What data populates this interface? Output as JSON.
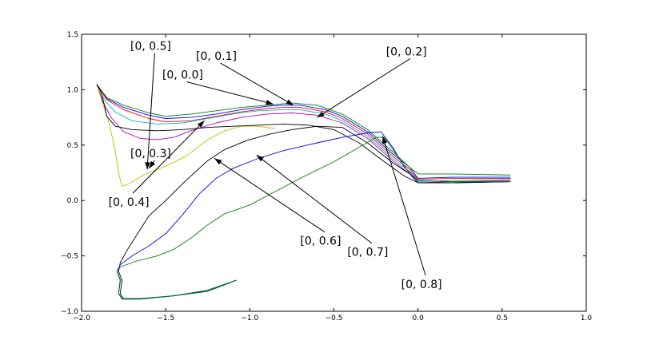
{
  "chart_data": {
    "type": "line",
    "title": "",
    "xlabel": "",
    "ylabel": "",
    "xlim": [
      -2.0,
      1.0
    ],
    "ylim": [
      -1.0,
      1.5
    ],
    "xticks": [
      -2.0,
      -1.5,
      -1.0,
      -0.5,
      0.0,
      0.5,
      1.0
    ],
    "xtick_labels": [
      "−2.0",
      "−1.5",
      "−1.0",
      "−0.5",
      "0.0",
      "0.5",
      "1.0"
    ],
    "yticks": [
      -1.0,
      -0.5,
      0.0,
      0.5,
      1.0,
      1.5
    ],
    "ytick_labels": [
      "−1.0",
      "−0.5",
      "0.0",
      "0.5",
      "1.0",
      "1.5"
    ],
    "grid": false,
    "legend": "none",
    "series": [
      {
        "color": "#0000ff",
        "points": [
          [
            -1.91,
            1.05
          ],
          [
            -1.85,
            0.92
          ],
          [
            -1.75,
            0.84
          ],
          [
            -1.6,
            0.77
          ],
          [
            -1.5,
            0.74
          ],
          [
            -1.35,
            0.75
          ],
          [
            -1.2,
            0.78
          ],
          [
            -1.05,
            0.82
          ],
          [
            -0.9,
            0.85
          ],
          [
            -0.8,
            0.86
          ],
          [
            -0.7,
            0.86
          ],
          [
            -0.55,
            0.82
          ],
          [
            -0.45,
            0.76
          ],
          [
            -0.3,
            0.62
          ],
          [
            -0.15,
            0.42
          ],
          [
            -0.05,
            0.3
          ],
          [
            0.0,
            0.2
          ],
          [
            0.2,
            0.21
          ],
          [
            0.55,
            0.21
          ]
        ]
      },
      {
        "color": "#008000",
        "points": [
          [
            -1.91,
            1.05
          ],
          [
            -1.85,
            0.93
          ],
          [
            -1.75,
            0.86
          ],
          [
            -1.6,
            0.79
          ],
          [
            -1.5,
            0.76
          ],
          [
            -1.35,
            0.78
          ],
          [
            -1.2,
            0.81
          ],
          [
            -1.05,
            0.84
          ],
          [
            -0.9,
            0.86
          ],
          [
            -0.75,
            0.88
          ],
          [
            -0.6,
            0.86
          ],
          [
            -0.45,
            0.78
          ],
          [
            -0.3,
            0.64
          ],
          [
            -0.15,
            0.44
          ],
          [
            -0.05,
            0.3
          ],
          [
            0.0,
            0.24
          ],
          [
            0.2,
            0.24
          ],
          [
            0.55,
            0.23
          ]
        ]
      },
      {
        "color": "#ff0000",
        "points": [
          [
            -1.91,
            1.05
          ],
          [
            -1.85,
            0.91
          ],
          [
            -1.75,
            0.82
          ],
          [
            -1.6,
            0.74
          ],
          [
            -1.5,
            0.71
          ],
          [
            -1.35,
            0.72
          ],
          [
            -1.2,
            0.76
          ],
          [
            -1.05,
            0.8
          ],
          [
            -0.9,
            0.83
          ],
          [
            -0.8,
            0.84
          ],
          [
            -0.7,
            0.84
          ],
          [
            -0.55,
            0.8
          ],
          [
            -0.45,
            0.74
          ],
          [
            -0.3,
            0.6
          ],
          [
            -0.15,
            0.4
          ],
          [
            -0.05,
            0.28
          ],
          [
            0.0,
            0.19
          ],
          [
            0.2,
            0.2
          ],
          [
            0.55,
            0.2
          ]
        ]
      },
      {
        "color": "#00bfbf",
        "points": [
          [
            -1.91,
            1.05
          ],
          [
            -1.86,
            0.9
          ],
          [
            -1.8,
            0.8
          ],
          [
            -1.7,
            0.72
          ],
          [
            -1.55,
            0.69
          ],
          [
            -1.4,
            0.7
          ],
          [
            -1.25,
            0.74
          ],
          [
            -1.1,
            0.78
          ],
          [
            -0.95,
            0.81
          ],
          [
            -0.8,
            0.82
          ],
          [
            -0.7,
            0.82
          ],
          [
            -0.55,
            0.78
          ],
          [
            -0.45,
            0.72
          ],
          [
            -0.3,
            0.58
          ],
          [
            -0.15,
            0.38
          ],
          [
            -0.05,
            0.26
          ],
          [
            0.0,
            0.17
          ],
          [
            0.2,
            0.18
          ],
          [
            0.55,
            0.19
          ]
        ]
      },
      {
        "color": "#bf00bf",
        "points": [
          [
            -1.91,
            1.05
          ],
          [
            -1.87,
            0.88
          ],
          [
            -1.82,
            0.74
          ],
          [
            -1.75,
            0.62
          ],
          [
            -1.65,
            0.56
          ],
          [
            -1.55,
            0.55
          ],
          [
            -1.45,
            0.57
          ],
          [
            -1.35,
            0.63
          ],
          [
            -1.2,
            0.7
          ],
          [
            -1.05,
            0.75
          ],
          [
            -0.9,
            0.78
          ],
          [
            -0.75,
            0.79
          ],
          [
            -0.6,
            0.77
          ],
          [
            -0.45,
            0.7
          ],
          [
            -0.3,
            0.56
          ],
          [
            -0.15,
            0.36
          ],
          [
            -0.05,
            0.24
          ],
          [
            0.0,
            0.16
          ],
          [
            0.2,
            0.17
          ],
          [
            0.55,
            0.18
          ]
        ]
      },
      {
        "color": "#bfbf00",
        "points": [
          [
            -1.91,
            1.05
          ],
          [
            -1.88,
            0.9
          ],
          [
            -1.84,
            0.72
          ],
          [
            -1.8,
            0.45
          ],
          [
            -1.78,
            0.25
          ],
          [
            -1.76,
            0.13
          ],
          [
            -1.72,
            0.15
          ],
          [
            -1.62,
            0.24
          ],
          [
            -1.5,
            0.31
          ],
          [
            -1.38,
            0.4
          ],
          [
            -1.25,
            0.55
          ],
          [
            -1.15,
            0.63
          ],
          [
            -1.05,
            0.67
          ],
          [
            -0.95,
            0.67
          ],
          [
            -0.85,
            0.65
          ]
        ]
      },
      {
        "color": "#000000",
        "points": [
          [
            -1.91,
            1.05
          ],
          [
            -1.89,
            1.0
          ],
          [
            -1.87,
            0.9
          ],
          [
            -1.85,
            0.76
          ],
          [
            -1.8,
            0.67
          ],
          [
            -1.7,
            0.64
          ],
          [
            -1.55,
            0.63
          ],
          [
            -1.4,
            0.64
          ],
          [
            -1.25,
            0.66
          ],
          [
            -1.1,
            0.67
          ],
          [
            -0.95,
            0.68
          ],
          [
            -0.8,
            0.69
          ],
          [
            -0.65,
            0.68
          ],
          [
            -0.5,
            0.64
          ],
          [
            -0.35,
            0.52
          ],
          [
            -0.2,
            0.35
          ],
          [
            -0.08,
            0.22
          ],
          [
            0.0,
            0.16
          ],
          [
            0.2,
            0.16
          ],
          [
            0.55,
            0.17
          ]
        ]
      },
      {
        "color": "#000000",
        "points": [
          [
            -1.08,
            -0.72
          ],
          [
            -1.25,
            -0.81
          ],
          [
            -1.45,
            -0.86
          ],
          [
            -1.65,
            -0.89
          ],
          [
            -1.75,
            -0.89
          ],
          [
            -1.77,
            -0.84
          ],
          [
            -1.76,
            -0.72
          ],
          [
            -1.78,
            -0.64
          ],
          [
            -1.77,
            -0.56
          ],
          [
            -1.73,
            -0.45
          ],
          [
            -1.68,
            -0.33
          ],
          [
            -1.6,
            -0.14
          ],
          [
            -1.5,
            0.0
          ],
          [
            -1.38,
            0.18
          ],
          [
            -1.25,
            0.36
          ],
          [
            -1.15,
            0.46
          ],
          [
            -1.02,
            0.54
          ],
          [
            -0.88,
            0.6
          ],
          [
            -0.75,
            0.64
          ],
          [
            -0.6,
            0.67
          ],
          [
            -0.45,
            0.66
          ],
          [
            -0.3,
            0.52
          ],
          [
            -0.15,
            0.34
          ],
          [
            -0.05,
            0.24
          ],
          [
            0.0,
            0.16
          ],
          [
            0.2,
            0.16
          ],
          [
            0.55,
            0.17
          ]
        ]
      },
      {
        "color": "#0000ff",
        "points": [
          [
            -1.08,
            -0.72
          ],
          [
            -1.25,
            -0.82
          ],
          [
            -1.45,
            -0.86
          ],
          [
            -1.65,
            -0.89
          ],
          [
            -1.76,
            -0.89
          ],
          [
            -1.78,
            -0.84
          ],
          [
            -1.77,
            -0.72
          ],
          [
            -1.79,
            -0.64
          ],
          [
            -1.77,
            -0.58
          ],
          [
            -1.7,
            -0.5
          ],
          [
            -1.6,
            -0.41
          ],
          [
            -1.5,
            -0.3
          ],
          [
            -1.4,
            -0.13
          ],
          [
            -1.3,
            0.06
          ],
          [
            -1.2,
            0.2
          ],
          [
            -1.1,
            0.29
          ],
          [
            -0.95,
            0.38
          ],
          [
            -0.8,
            0.45
          ],
          [
            -0.6,
            0.52
          ],
          [
            -0.45,
            0.57
          ],
          [
            -0.3,
            0.61
          ],
          [
            -0.22,
            0.62
          ],
          [
            -0.15,
            0.48
          ],
          [
            -0.08,
            0.3
          ],
          [
            0.0,
            0.18
          ],
          [
            0.2,
            0.17
          ],
          [
            0.55,
            0.17
          ]
        ]
      },
      {
        "color": "#008000",
        "points": [
          [
            -1.08,
            -0.72
          ],
          [
            -1.25,
            -0.82
          ],
          [
            -1.45,
            -0.86
          ],
          [
            -1.65,
            -0.89
          ],
          [
            -1.76,
            -0.89
          ],
          [
            -1.78,
            -0.84
          ],
          [
            -1.77,
            -0.72
          ],
          [
            -1.79,
            -0.64
          ],
          [
            -1.77,
            -0.6
          ],
          [
            -1.68,
            -0.55
          ],
          [
            -1.55,
            -0.5
          ],
          [
            -1.45,
            -0.44
          ],
          [
            -1.35,
            -0.34
          ],
          [
            -1.25,
            -0.22
          ],
          [
            -1.15,
            -0.12
          ],
          [
            -1.0,
            -0.04
          ],
          [
            -0.85,
            0.08
          ],
          [
            -0.7,
            0.2
          ],
          [
            -0.5,
            0.35
          ],
          [
            -0.35,
            0.48
          ],
          [
            -0.25,
            0.57
          ],
          [
            -0.2,
            0.57
          ],
          [
            -0.12,
            0.4
          ],
          [
            -0.05,
            0.24
          ],
          [
            0.0,
            0.18
          ],
          [
            0.2,
            0.17
          ],
          [
            0.55,
            0.17
          ]
        ]
      },
      {
        "color": "#006060",
        "points": [
          [
            -1.08,
            -0.72
          ],
          [
            -1.25,
            -0.81
          ],
          [
            -1.45,
            -0.86
          ],
          [
            -1.65,
            -0.885
          ],
          [
            -1.76,
            -0.885
          ],
          [
            -1.78,
            -0.835
          ],
          [
            -1.77,
            -0.715
          ],
          [
            -1.79,
            -0.635
          ]
        ]
      }
    ],
    "annotations": [
      {
        "label": "[0, 0.0]",
        "text_x": -1.52,
        "text_y": 1.1,
        "arrow_x": -0.86,
        "arrow_y": 0.87
      },
      {
        "label": "[0, 0.1]",
        "text_x": -1.32,
        "text_y": 1.27,
        "arrow_x": -0.74,
        "arrow_y": 0.86
      },
      {
        "label": "[0, 0.2]",
        "text_x": -0.19,
        "text_y": 1.31,
        "arrow_x": -0.6,
        "arrow_y": 0.75
      },
      {
        "label": "[0, 0.3]",
        "text_x": -1.71,
        "text_y": 0.39,
        "arrow_x": -1.6,
        "arrow_y": 0.29
      },
      {
        "label": "[0, 0.4]",
        "text_x": -1.84,
        "text_y": -0.05,
        "arrow_x": -1.27,
        "arrow_y": 0.72
      },
      {
        "label": "[0, 0.5]",
        "text_x": -1.71,
        "text_y": 1.36,
        "arrow_x": -1.61,
        "arrow_y": 0.28
      },
      {
        "label": "[0, 0.6]",
        "text_x": -0.7,
        "text_y": -0.4,
        "arrow_x": -1.21,
        "arrow_y": 0.38
      },
      {
        "label": "[0, 0.7]",
        "text_x": -0.42,
        "text_y": -0.5,
        "arrow_x": -0.96,
        "arrow_y": 0.41
      },
      {
        "label": "[0, 0.8]",
        "text_x": -0.1,
        "text_y": -0.79,
        "arrow_x": -0.21,
        "arrow_y": 0.58
      }
    ]
  }
}
